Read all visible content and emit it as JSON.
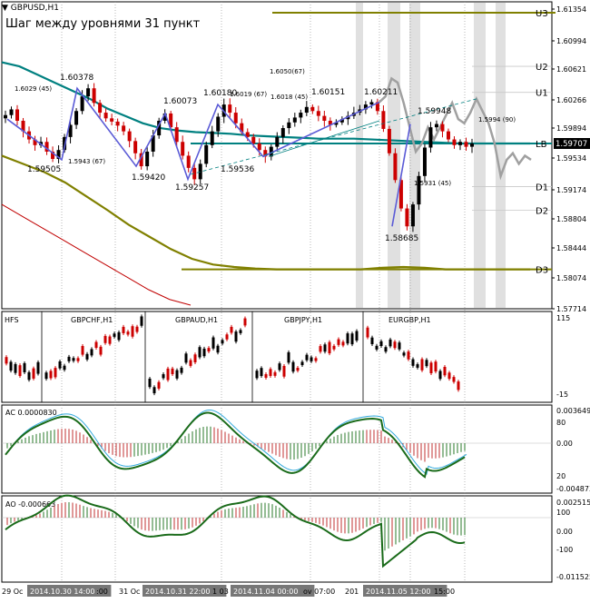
{
  "window": {
    "symbol": "GBPUSD,H1",
    "note": "Шаг между уровнями 31 пункт"
  },
  "main_price_scale": [
    "1.61354",
    "1.60994",
    "1.60621",
    "1.60266",
    "1.59894",
    "1.59707",
    "1.59534",
    "1.59174",
    "1.58804",
    "1.58444",
    "1.58074",
    "1.57714"
  ],
  "current_price": "1.59707",
  "current_price_color": "#000000",
  "levels": [
    {
      "label": "U3",
      "value": 1.6131,
      "color": "#808000"
    },
    {
      "label": "U2",
      "value": 1.6065
    },
    {
      "label": "U1",
      "value": 1.6033
    },
    {
      "label": "LB",
      "value": 1.597,
      "color": "#008080"
    },
    {
      "label": "D1",
      "value": 1.5917
    },
    {
      "label": "D2",
      "value": 1.5888
    },
    {
      "label": "D3",
      "value": 1.5815,
      "color": "#808000"
    }
  ],
  "price_labels": [
    {
      "text": "1.60378",
      "kind": "high"
    },
    {
      "text": "1.6029 (45)",
      "kind": "small"
    },
    {
      "text": "1.59505",
      "kind": "low"
    },
    {
      "text": "1.5943 (67)",
      "kind": "small"
    },
    {
      "text": "1.60073",
      "kind": "high"
    },
    {
      "text": "1.59420",
      "kind": "low"
    },
    {
      "text": "1.60180",
      "kind": "high"
    },
    {
      "text": "1.6019 (67)",
      "kind": "small"
    },
    {
      "text": "1.59257",
      "kind": "low"
    },
    {
      "text": "1.6050(67)",
      "kind": "small"
    },
    {
      "text": "1.6018 (45)",
      "kind": "small"
    },
    {
      "text": "1.60151",
      "kind": "high"
    },
    {
      "text": "1.59536",
      "kind": "low"
    },
    {
      "text": "1.60211",
      "kind": "high"
    },
    {
      "text": "1.59948",
      "kind": "high"
    },
    {
      "text": "1.5994 (90)",
      "kind": "small"
    },
    {
      "text": "1.5931 (45)",
      "kind": "small"
    },
    {
      "text": "1.58685",
      "kind": "low"
    }
  ],
  "pairs_panel": {
    "label": "HFS",
    "pairs": [
      "GBPCHF,H1",
      "GBPAUD,H1",
      "GBPJPY,H1",
      "EURGBP,H1"
    ],
    "scale": [
      "115",
      "-15"
    ]
  },
  "ac_panel": {
    "label": "AC 0.0000830",
    "scale": [
      "0.003649",
      "80",
      "0.00",
      "20",
      "-0.004873"
    ]
  },
  "ao_panel": {
    "label": "AO -0.000663",
    "scale": [
      "0.002515",
      "100",
      "0.00",
      "-100",
      "-0.011525"
    ]
  },
  "time_axis": [
    {
      "text": "29 Oc"
    },
    {
      "text": "2014.10.30 14:00",
      "boxed": true
    },
    {
      "text": ":00"
    },
    {
      "text": "31 Oc"
    },
    {
      "text": "2014.10.31 22:00",
      "boxed": true
    },
    {
      "text": "1 03"
    },
    {
      "text": "2014.11.04 00:00",
      "boxed": true
    },
    {
      "text": "ov 07:00"
    },
    {
      "text": "201"
    },
    {
      "text": "2014.11.05 12:00",
      "boxed": true
    },
    {
      "text": "15:00"
    }
  ],
  "chart_data": {
    "type": "line",
    "title": "GBPUSD,H1",
    "ylim": [
      1.5771,
      1.614
    ],
    "series": [
      {
        "name": "GBPUSD,H1",
        "kind": "ohlc-close",
        "values": [
          1.6005,
          1.6012,
          1.5998,
          1.5985,
          1.5975,
          1.5968,
          1.5972,
          1.596,
          1.5951,
          1.5962,
          1.5978,
          1.5993,
          1.601,
          1.6028,
          1.6038,
          1.602,
          1.6008,
          1.6001,
          1.5997,
          1.5992,
          1.5985,
          1.5973,
          1.5958,
          1.5942,
          1.596,
          1.598,
          1.5998,
          1.6007,
          1.599,
          1.5972,
          1.5955,
          1.594,
          1.5926,
          1.5945,
          1.5968,
          1.5985,
          1.6003,
          1.6018,
          1.6008,
          1.5995,
          1.5984,
          1.5978,
          1.597,
          1.5962,
          1.5954,
          1.5966,
          1.5978,
          1.5989,
          1.5996,
          1.6002,
          1.6008,
          1.6015,
          1.601,
          1.6004,
          1.5998,
          1.5993,
          1.5996,
          1.6,
          1.6004,
          1.6008,
          1.6012,
          1.6018,
          1.6021,
          1.601,
          1.5988,
          1.5958,
          1.5925,
          1.589,
          1.5868,
          1.5895,
          1.593,
          1.5965,
          1.599,
          1.5994,
          1.5985,
          1.5975,
          1.5968,
          1.5972,
          1.5966,
          1.597
        ]
      },
      {
        "name": "Moving average (teal)",
        "color": "#008080",
        "values": [
          1.607,
          1.6065,
          1.6055,
          1.6045,
          1.6035,
          1.6025,
          1.6013,
          1.6004,
          1.5995,
          1.5989,
          1.5986,
          1.5984,
          1.5983,
          1.5982,
          1.598,
          1.5979,
          1.5978,
          1.5977,
          1.5976,
          1.5976,
          1.5976,
          1.5975,
          1.5974,
          1.5973,
          1.5972,
          1.5971,
          1.597,
          1.597,
          1.597,
          1.597,
          1.597
        ]
      },
      {
        "name": "Moving average (olive)",
        "color": "#808000",
        "values": [
          1.5955,
          1.5945,
          1.5935,
          1.5922,
          1.5905,
          1.5888,
          1.587,
          1.5855,
          1.584,
          1.5828,
          1.5821,
          1.5818,
          1.5816,
          1.5815,
          1.5815,
          1.5815,
          1.5815,
          1.5815,
          1.5817,
          1.5818,
          1.5817,
          1.5815,
          1.5815,
          1.5815,
          1.5815,
          1.5815
        ]
      },
      {
        "name": "Moving average (red)",
        "color": "#c00000",
        "values": [
          1.5895,
          1.588,
          1.5865,
          1.585,
          1.5835,
          1.582,
          1.5805,
          1.579,
          1.5778,
          1.5771
        ]
      },
      {
        "name": "Forecast (gray)",
        "color": "#a0a0a0",
        "values": [
          1.6021,
          1.6028,
          1.605,
          1.6045,
          1.602,
          1.599,
          1.596,
          1.597,
          1.599,
          1.5975,
          1.599,
          1.6005,
          1.602,
          1.6,
          1.5995,
          1.6008,
          1.6025,
          1.601,
          1.5995,
          1.597,
          1.593,
          1.595,
          1.5958,
          1.5945,
          1.5955,
          1.595
        ]
      }
    ]
  },
  "colors": {
    "bull": "#000000",
    "bear": "#cc0000",
    "zigzag": "#5b5bd6",
    "grid": "#e6e6e6",
    "shade": "#e0e0e0",
    "ac_line": "#1a6b1a",
    "ac_line2": "#33aadd",
    "ao_line": "#1a6b1a"
  }
}
